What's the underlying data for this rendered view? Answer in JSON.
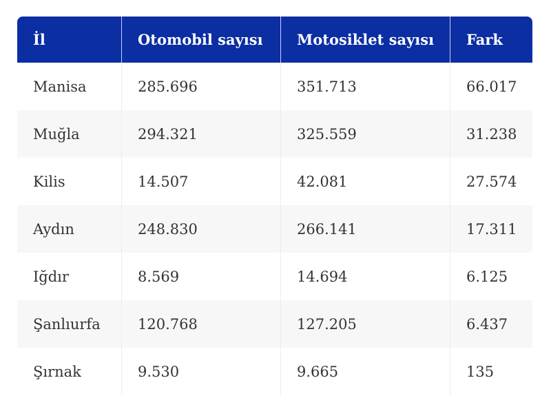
{
  "table": {
    "header": [
      "İl",
      "Otomobil sayısı",
      "Motosiklet sayısı",
      "Fark"
    ],
    "rows": [
      [
        "Manisa",
        "285.696",
        "351.713",
        "66.017"
      ],
      [
        "Muğla",
        "294.321",
        "325.559",
        "31.238"
      ],
      [
        "Kilis",
        "14.507",
        "42.081",
        "27.574"
      ],
      [
        "Aydın",
        "248.830",
        "266.141",
        "17.311"
      ],
      [
        "Iğdır",
        "8.569",
        "14.694",
        "6.125"
      ],
      [
        "Şanlıurfa",
        "120.768",
        "127.205",
        "6.437"
      ],
      [
        "Şırnak",
        "9.530",
        "9.665",
        "135"
      ]
    ]
  }
}
